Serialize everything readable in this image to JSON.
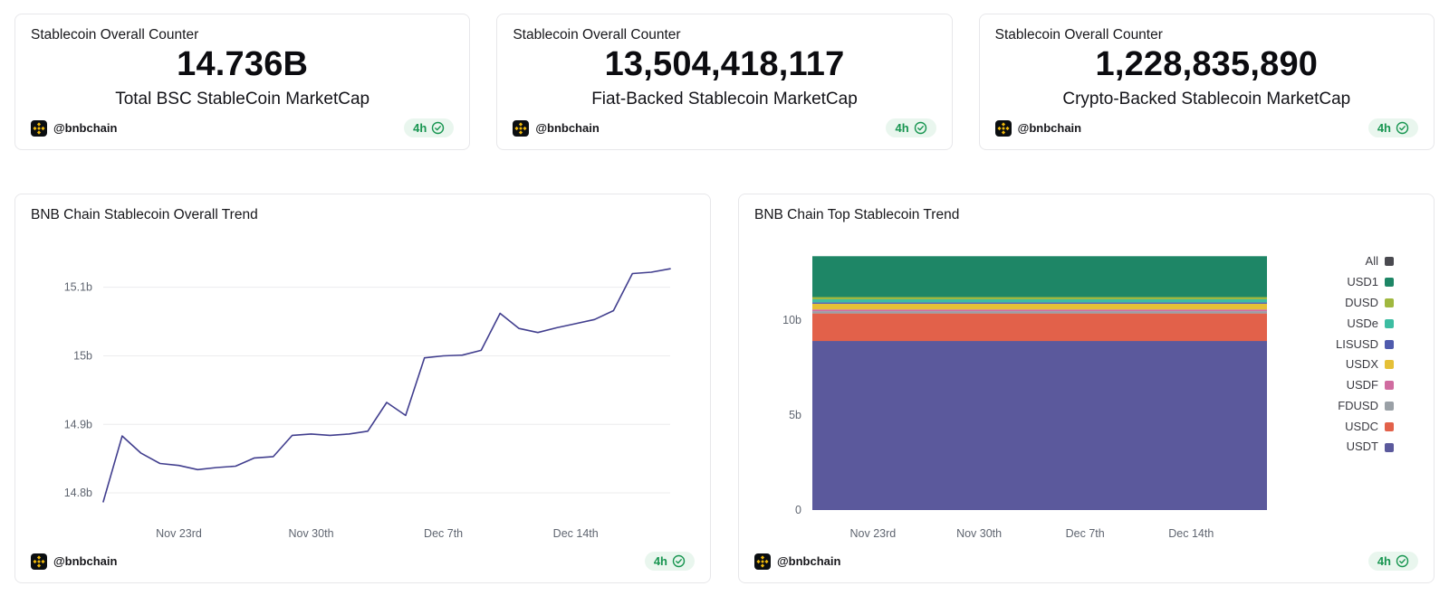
{
  "footer": {
    "handle": "@bnbchain",
    "badge": "4h",
    "badge_color": "#179550"
  },
  "cards": [
    {
      "title": "Stablecoin Overall Counter",
      "value": "14.736B",
      "subtitle": "Total BSC StableCoin MarketCap"
    },
    {
      "title": "Stablecoin Overall Counter",
      "value": "13,504,418,117",
      "subtitle": "Fiat-Backed Stablecoin MarketCap"
    },
    {
      "title": "Stablecoin Overall Counter",
      "value": "1,228,835,890",
      "subtitle": "Crypto-Backed Stablecoin MarketCap"
    }
  ],
  "chart_data": [
    {
      "type": "line",
      "title": "BNB Chain Stablecoin Overall Trend",
      "line_color": "#413e8e",
      "grid": true,
      "legend_position": "none",
      "ylim": [
        14.775,
        15.155
      ],
      "x": [
        0,
        1,
        2,
        3,
        4,
        5,
        6,
        7,
        8,
        9,
        10,
        11,
        12,
        13,
        14,
        15,
        16,
        17,
        18,
        19,
        20,
        21,
        22,
        23,
        24,
        25,
        26,
        27,
        28,
        29,
        30
      ],
      "values": [
        14.787,
        14.883,
        14.858,
        14.843,
        14.84,
        14.834,
        14.837,
        14.839,
        14.851,
        14.853,
        14.884,
        14.886,
        14.884,
        14.886,
        14.89,
        14.932,
        14.913,
        14.997,
        15.0,
        15.001,
        15.008,
        15.062,
        15.04,
        15.034,
        15.041,
        15.047,
        15.053,
        15.066,
        15.12,
        15.122,
        15.127
      ],
      "yticks": [
        {
          "v": 14.8,
          "label": "14.8b"
        },
        {
          "v": 14.9,
          "label": "14.9b"
        },
        {
          "v": 15.0,
          "label": "15b"
        },
        {
          "v": 15.1,
          "label": "15.1b"
        }
      ],
      "xticks": [
        {
          "v": 4,
          "label": "Nov 23rd"
        },
        {
          "v": 11,
          "label": "Nov 30th"
        },
        {
          "v": 18,
          "label": "Dec 7th"
        },
        {
          "v": 25,
          "label": "Dec 14th"
        }
      ]
    },
    {
      "type": "area",
      "stacked": true,
      "title": "BNB Chain Top Stablecoin Trend",
      "legend_position": "right",
      "ylim": [
        0,
        13.9
      ],
      "xmax": 30,
      "series": [
        {
          "name": "USDT",
          "value": 8.9,
          "color": "#5b599c"
        },
        {
          "name": "USDC",
          "value": 1.45,
          "color": "#e2614a"
        },
        {
          "name": "FDUSD",
          "value": 0.12,
          "color": "#9aa0a6"
        },
        {
          "name": "USDF",
          "value": 0.09,
          "color": "#d06ca0"
        },
        {
          "name": "USDX",
          "value": 0.3,
          "color": "#e5c037"
        },
        {
          "name": "LISUSD",
          "value": 0.07,
          "color": "#4f5bad"
        },
        {
          "name": "USDe",
          "value": 0.16,
          "color": "#3dbda2"
        },
        {
          "name": "DUSD",
          "value": 0.12,
          "color": "#a0b83f"
        },
        {
          "name": "USD1",
          "value": 2.15,
          "color": "#1e8666"
        }
      ],
      "legend": [
        {
          "label": "All",
          "color": "#4a4a50"
        },
        {
          "label": "USD1",
          "color": "#1e8666"
        },
        {
          "label": "DUSD",
          "color": "#a0b83f"
        },
        {
          "label": "USDe",
          "color": "#3dbda2"
        },
        {
          "label": "LISUSD",
          "color": "#4f5bad"
        },
        {
          "label": "USDX",
          "color": "#e5c037"
        },
        {
          "label": "USDF",
          "color": "#d06ca0"
        },
        {
          "label": "FDUSD",
          "color": "#9aa0a6"
        },
        {
          "label": "USDC",
          "color": "#e2614a"
        },
        {
          "label": "USDT",
          "color": "#5b599c"
        }
      ],
      "yticks": [
        {
          "v": 0,
          "label": "0"
        },
        {
          "v": 5,
          "label": "5b"
        },
        {
          "v": 10,
          "label": "10b"
        }
      ],
      "xticks": [
        {
          "v": 4,
          "label": "Nov 23rd"
        },
        {
          "v": 11,
          "label": "Nov 30th"
        },
        {
          "v": 18,
          "label": "Dec 7th"
        },
        {
          "v": 25,
          "label": "Dec 14th"
        }
      ]
    }
  ]
}
